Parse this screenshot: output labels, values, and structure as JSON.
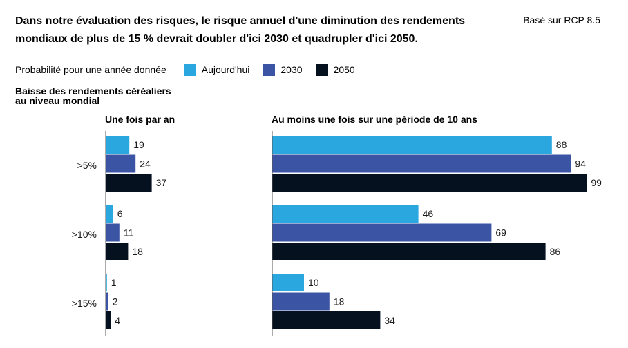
{
  "title": "Dans notre évaluation des risques, le risque annuel d'une diminution des rendements mondiaux de plus de 15 % devrait doubler d'ici 2030 et quadrupler d'ici 2050.",
  "scenario": "Basé sur RCP 8.5",
  "legend": {
    "title": "Probabilité pour une année donnée",
    "items": [
      {
        "label": "Aujourd'hui",
        "color": "#2aa7de"
      },
      {
        "label": "2030",
        "color": "#3b54a4"
      },
      {
        "label": "2050",
        "color": "#061120"
      }
    ]
  },
  "y_title": [
    "Baisse des rendements céréaliers",
    "au niveau mondial"
  ],
  "chart_data": [
    {
      "type": "bar",
      "orientation": "horizontal",
      "title": "Une fois par an",
      "categories": [
        ">5%",
        ">10%",
        ">15%"
      ],
      "series": [
        {
          "name": "Aujourd'hui",
          "values": [
            19,
            6,
            1
          ]
        },
        {
          "name": "2030",
          "values": [
            24,
            11,
            2
          ]
        },
        {
          "name": "2050",
          "values": [
            37,
            18,
            4
          ]
        }
      ],
      "xlim": [
        0,
        100
      ]
    },
    {
      "type": "bar",
      "orientation": "horizontal",
      "title": "Au moins une fois sur une période de 10 ans",
      "categories": [
        ">5%",
        ">10%",
        ">15%"
      ],
      "series": [
        {
          "name": "Aujourd'hui",
          "values": [
            88,
            46,
            10
          ]
        },
        {
          "name": "2030",
          "values": [
            94,
            69,
            18
          ]
        },
        {
          "name": "2050",
          "values": [
            99,
            86,
            34
          ]
        }
      ],
      "xlim": [
        0,
        100
      ]
    }
  ]
}
